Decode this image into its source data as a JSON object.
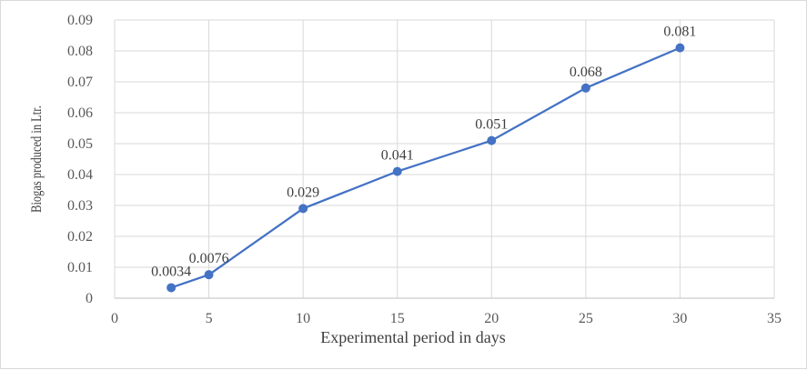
{
  "chart_data": {
    "type": "scatter",
    "title": "",
    "xlabel": "Experimental period in days",
    "ylabel": "Biogas produced in Ltr.",
    "xlim": [
      0,
      35
    ],
    "ylim": [
      0,
      0.09
    ],
    "x_ticks": [
      "0",
      "5",
      "10",
      "15",
      "20",
      "25",
      "30",
      "35"
    ],
    "y_ticks": [
      "0",
      "0.01",
      "0.02",
      "0.03",
      "0.04",
      "0.05",
      "0.06",
      "0.07",
      "0.08",
      "0.09"
    ],
    "grid": true,
    "legend": "none",
    "series": [
      {
        "color": "#4472c4",
        "x": [
          3,
          5,
          10,
          15,
          20,
          25,
          30
        ],
        "y": [
          0.0034,
          0.0076,
          0.029,
          0.041,
          0.051,
          0.068,
          0.081
        ],
        "labels": [
          "0.0034",
          "0.0076",
          "0.029",
          "0.041",
          "0.051",
          "0.068",
          "0.081"
        ]
      }
    ]
  }
}
